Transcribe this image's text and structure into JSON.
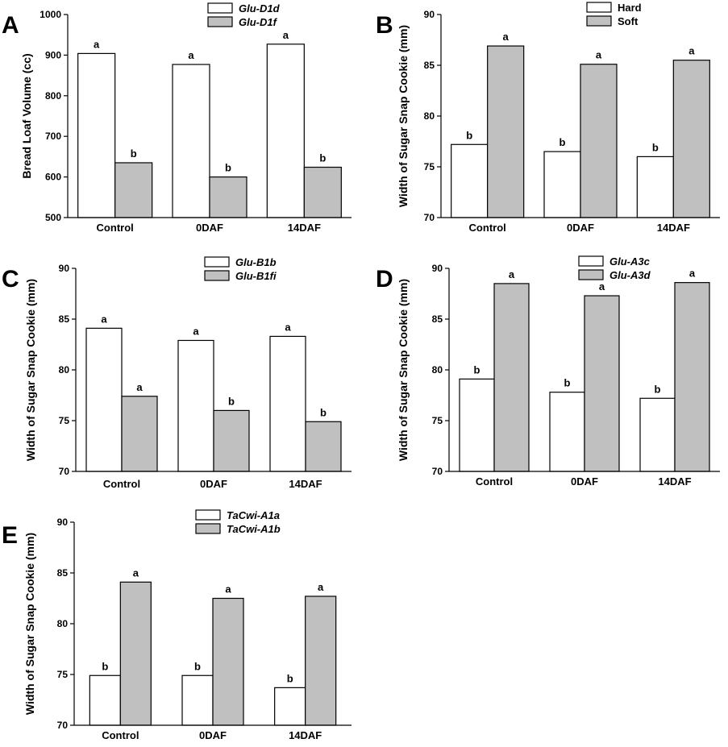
{
  "chart_data": [
    {
      "panel": "A",
      "type": "bar",
      "ylabel": "Bread Loaf Volume (cc)",
      "xlabel": "",
      "ylim": [
        500,
        1000
      ],
      "yticks": [
        500,
        600,
        700,
        800,
        900,
        1000
      ],
      "categories": [
        "Control",
        "0DAF",
        "14DAF"
      ],
      "series": [
        {
          "name": "Glu-D1d",
          "color": "#ffffff",
          "values": [
            904,
            877,
            927
          ],
          "labels": [
            "a",
            "a",
            "a"
          ]
        },
        {
          "name": "Glu-D1f",
          "color": "#c0c0c0",
          "values": [
            635,
            600,
            624
          ],
          "labels": [
            "b",
            "b",
            "b"
          ]
        }
      ],
      "legend_italic": true
    },
    {
      "panel": "B",
      "type": "bar",
      "ylabel": "Width of Sugar Snap Cookie (mm)",
      "xlabel": "",
      "ylim": [
        70,
        90
      ],
      "yticks": [
        70,
        75,
        80,
        85,
        90
      ],
      "categories": [
        "Control",
        "0DAF",
        "14DAF"
      ],
      "series": [
        {
          "name": "Hard",
          "color": "#ffffff",
          "values": [
            77.2,
            76.5,
            76.0
          ],
          "labels": [
            "b",
            "b",
            "b"
          ]
        },
        {
          "name": "Soft",
          "color": "#c0c0c0",
          "values": [
            86.9,
            85.1,
            85.5
          ],
          "labels": [
            "a",
            "a",
            "a"
          ]
        }
      ],
      "legend_italic": false
    },
    {
      "panel": "C",
      "type": "bar",
      "ylabel": "Width of Sugar Snap Cookie (mm)",
      "xlabel": "",
      "ylim": [
        70,
        90
      ],
      "yticks": [
        70,
        75,
        80,
        85,
        90
      ],
      "categories": [
        "Control",
        "0DAF",
        "14DAF"
      ],
      "series": [
        {
          "name": "Glu-B1b",
          "color": "#ffffff",
          "values": [
            84.1,
            82.9,
            83.3
          ],
          "labels": [
            "a",
            "a",
            "a"
          ]
        },
        {
          "name": "Glu-B1fi",
          "color": "#c0c0c0",
          "values": [
            77.4,
            76.0,
            74.9
          ],
          "labels": [
            "a",
            "b",
            "b"
          ]
        }
      ],
      "legend_italic": true
    },
    {
      "panel": "D",
      "type": "bar",
      "ylabel": "Width of Sugar Snap Cookie (mm)",
      "xlabel": "",
      "ylim": [
        70,
        90
      ],
      "yticks": [
        70,
        75,
        80,
        85,
        90
      ],
      "categories": [
        "Control",
        "0DAF",
        "14DAF"
      ],
      "series": [
        {
          "name": "Glu-A3c",
          "color": "#ffffff",
          "values": [
            79.1,
            77.8,
            77.2
          ],
          "labels": [
            "b",
            "b",
            "b"
          ]
        },
        {
          "name": "Glu-A3d",
          "color": "#c0c0c0",
          "values": [
            88.5,
            87.3,
            88.6
          ],
          "labels": [
            "a",
            "a",
            "a"
          ]
        }
      ],
      "legend_italic": true
    },
    {
      "panel": "E",
      "type": "bar",
      "ylabel": "Width of Sugar Snap Cookie (mm)",
      "xlabel": "",
      "ylim": [
        70,
        90
      ],
      "yticks": [
        70,
        75,
        80,
        85,
        90
      ],
      "categories": [
        "Control",
        "0DAF",
        "14DAF"
      ],
      "series": [
        {
          "name": "TaCwi-A1a",
          "color": "#ffffff",
          "values": [
            74.9,
            74.9,
            73.7
          ],
          "labels": [
            "b",
            "b",
            "b"
          ]
        },
        {
          "name": "TaCwi-A1b",
          "color": "#c0c0c0",
          "values": [
            84.1,
            82.5,
            82.7
          ],
          "labels": [
            "a",
            "a",
            "a"
          ]
        }
      ],
      "legend_italic": true
    }
  ]
}
